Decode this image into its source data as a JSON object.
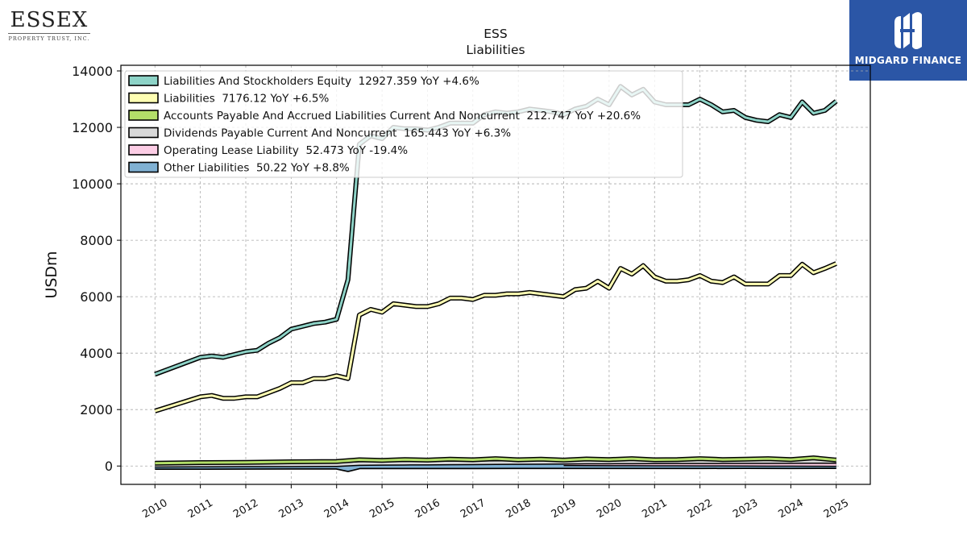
{
  "branding": {
    "company_name": "ESSEX",
    "company_sub": "PROPERTY TRUST, INC.",
    "publisher_name": "MIDGARD FINANCE",
    "publisher_bg": "#2b56a6"
  },
  "chart_data": {
    "type": "line",
    "title": "ESS",
    "subtitle": "Liabilities",
    "ylabel": "USDm",
    "xlabel": "",
    "ylim": [
      -650,
      14200
    ],
    "xlim": [
      2009.25,
      2025.75
    ],
    "yticks": [
      0,
      2000,
      4000,
      6000,
      8000,
      10000,
      12000,
      14000
    ],
    "xticks": [
      "2010",
      "2011",
      "2012",
      "2013",
      "2014",
      "2015",
      "2016",
      "2017",
      "2018",
      "2019",
      "2020",
      "2021",
      "2022",
      "2023",
      "2024",
      "2025"
    ],
    "grid": true,
    "legend_position": "top-left",
    "series": [
      {
        "name": "Liabilities And Stockholders Equity",
        "legend": "Liabilities And Stockholders Equity  12927.359 YoY +4.6%",
        "color": "#8dd3c7",
        "x": [
          2010.0,
          2011.0,
          2011.25,
          2011.5,
          2011.75,
          2012.0,
          2012.25,
          2012.5,
          2012.75,
          2013.0,
          2013.25,
          2013.5,
          2013.75,
          2014.0,
          2014.25,
          2014.5,
          2014.75,
          2015.0,
          2015.25,
          2015.5,
          2015.75,
          2016.0,
          2016.25,
          2016.5,
          2016.75,
          2017.0,
          2017.25,
          2017.5,
          2017.75,
          2018.0,
          2018.25,
          2018.5,
          2018.75,
          2019.0,
          2019.25,
          2019.5,
          2019.75,
          2020.0,
          2020.25,
          2020.5,
          2020.75,
          2021.0,
          2021.25,
          2021.5,
          2021.75,
          2022.0,
          2022.25,
          2022.5,
          2022.75,
          2023.0,
          2023.25,
          2023.5,
          2023.75,
          2024.0,
          2024.25,
          2024.5,
          2024.75,
          2025.0
        ],
        "y": [
          3250,
          3850,
          3900,
          3850,
          3950,
          4050,
          4100,
          4350,
          4550,
          4850,
          4950,
          5050,
          5100,
          5200,
          6600,
          11400,
          11700,
          11600,
          12000,
          11950,
          11950,
          11900,
          12000,
          12150,
          12150,
          12150,
          12450,
          12550,
          12500,
          12550,
          12650,
          12600,
          12550,
          12450,
          12650,
          12750,
          13000,
          12800,
          13450,
          13150,
          13350,
          12900,
          12800,
          12800,
          12800,
          13000,
          12800,
          12550,
          12600,
          12350,
          12250,
          12200,
          12450,
          12350,
          12900,
          12500,
          12600,
          12927
        ]
      },
      {
        "name": "Liabilities",
        "legend": "Liabilities  7176.12 YoY +6.5%",
        "color": "#ffffb3",
        "x": [
          2010.0,
          2011.0,
          2011.25,
          2011.5,
          2011.75,
          2012.0,
          2012.25,
          2012.5,
          2012.75,
          2013.0,
          2013.25,
          2013.5,
          2013.75,
          2014.0,
          2014.25,
          2014.5,
          2014.75,
          2015.0,
          2015.25,
          2015.5,
          2015.75,
          2016.0,
          2016.25,
          2016.5,
          2016.75,
          2017.0,
          2017.25,
          2017.5,
          2017.75,
          2018.0,
          2018.25,
          2018.5,
          2018.75,
          2019.0,
          2019.25,
          2019.5,
          2019.75,
          2020.0,
          2020.25,
          2020.5,
          2020.75,
          2021.0,
          2021.25,
          2021.5,
          2021.75,
          2022.0,
          2022.25,
          2022.5,
          2022.75,
          2023.0,
          2023.25,
          2023.5,
          2023.75,
          2024.0,
          2024.25,
          2024.5,
          2024.75,
          2025.0
        ],
        "y": [
          1950,
          2450,
          2500,
          2400,
          2400,
          2450,
          2450,
          2600,
          2750,
          2950,
          2950,
          3100,
          3100,
          3200,
          3100,
          5350,
          5550,
          5450,
          5750,
          5700,
          5650,
          5650,
          5750,
          5950,
          5950,
          5900,
          6050,
          6050,
          6100,
          6100,
          6150,
          6100,
          6050,
          6000,
          6250,
          6300,
          6550,
          6300,
          7000,
          6800,
          7100,
          6700,
          6550,
          6550,
          6600,
          6750,
          6550,
          6500,
          6700,
          6450,
          6450,
          6450,
          6750,
          6750,
          7150,
          6850,
          7000,
          7176
        ]
      },
      {
        "name": "Accounts Payable And Accrued Liabilities Current And Noncurrent",
        "legend": "Accounts Payable And Accrued Liabilities Current And Noncurrent  212.747 YoY +20.6%",
        "color": "#b3de69",
        "x": [
          2010.0,
          2011.0,
          2012.0,
          2013.0,
          2014.0,
          2014.5,
          2015.0,
          2015.5,
          2016.0,
          2016.5,
          2017.0,
          2017.5,
          2018.0,
          2018.5,
          2019.0,
          2019.5,
          2020.0,
          2020.5,
          2021.0,
          2021.5,
          2022.0,
          2022.5,
          2023.0,
          2023.5,
          2024.0,
          2024.5,
          2025.0
        ],
        "y": [
          100,
          120,
          130,
          150,
          160,
          220,
          200,
          230,
          210,
          240,
          220,
          260,
          220,
          240,
          210,
          250,
          230,
          260,
          220,
          230,
          260,
          230,
          240,
          260,
          230,
          290,
          213
        ]
      },
      {
        "name": "Dividends Payable Current And Noncurrent",
        "legend": "Dividends Payable Current And Noncurrent  165.443 YoY +6.3%",
        "color": "#d9d9d9",
        "x": [
          2010.0,
          2011.0,
          2012.0,
          2013.0,
          2014.0,
          2014.5,
          2015.0,
          2015.5,
          2016.0,
          2016.5,
          2017.0,
          2017.5,
          2018.0,
          2018.5,
          2019.0,
          2019.5,
          2020.0,
          2020.5,
          2021.0,
          2021.5,
          2022.0,
          2022.5,
          2023.0,
          2023.5,
          2024.0,
          2024.5,
          2025.0
        ],
        "y": [
          30,
          35,
          40,
          45,
          50,
          90,
          95,
          100,
          105,
          110,
          115,
          120,
          125,
          130,
          135,
          140,
          145,
          148,
          150,
          152,
          153,
          155,
          156,
          158,
          160,
          163,
          165
        ]
      },
      {
        "name": "Operating Lease Liability",
        "legend": "Operating Lease Liability  52.473 YoY -19.4%",
        "color": "#fccde5",
        "x": [
          2019.0,
          2019.5,
          2020.0,
          2020.5,
          2021.0,
          2021.5,
          2022.0,
          2022.5,
          2023.0,
          2023.5,
          2024.0,
          2024.5,
          2025.0
        ],
        "y": [
          80,
          78,
          76,
          74,
          72,
          70,
          68,
          66,
          64,
          62,
          60,
          57,
          52
        ]
      },
      {
        "name": "Other Liabilities",
        "legend": "Other Liabilities  50.22 YoY +8.8%",
        "color": "#80b1d3",
        "x": [
          2010.0,
          2011.0,
          2012.0,
          2013.0,
          2014.0,
          2014.25,
          2014.5,
          2015.0,
          2016.0,
          2017.0,
          2018.0,
          2019.0,
          2020.0,
          2021.0,
          2022.0,
          2023.0,
          2024.0,
          2025.0
        ],
        "y": [
          20,
          22,
          25,
          28,
          30,
          -60,
          40,
          42,
          44,
          45,
          46,
          46,
          47,
          48,
          48,
          49,
          46,
          50
        ]
      }
    ]
  }
}
